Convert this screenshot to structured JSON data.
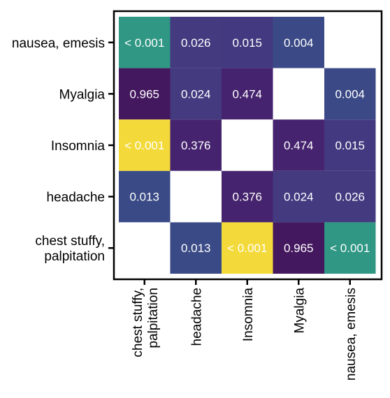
{
  "chart_data": {
    "type": "heatmap",
    "title": "",
    "xlabel": "",
    "ylabel": "",
    "x_categories": [
      [
        "chest stuffy,",
        "palpitation"
      ],
      [
        "headache"
      ],
      [
        "Insomnia"
      ],
      [
        "Myalgia"
      ],
      [
        "nausea, emesis"
      ]
    ],
    "y_categories_top_to_bottom": [
      [
        "nausea, emesis"
      ],
      [
        "Myalgia"
      ],
      [
        "Insomnia"
      ],
      [
        "headache"
      ],
      [
        "chest stuffy,",
        "palpitation"
      ]
    ],
    "cells": [
      [
        {
          "label": "< 0.001",
          "color": "#2F9784"
        },
        {
          "label": "0.026",
          "color": "#433A80"
        },
        {
          "label": "0.015",
          "color": "#433980"
        },
        {
          "label": "0.004",
          "color": "#3B4A86"
        },
        {
          "label": "",
          "color": "#ffffff"
        }
      ],
      [
        {
          "label": "0.965",
          "color": "#44185E"
        },
        {
          "label": "0.024",
          "color": "#433A80"
        },
        {
          "label": "0.474",
          "color": "#45236E"
        },
        {
          "label": "",
          "color": "#ffffff"
        },
        {
          "label": "0.004",
          "color": "#3B4A86"
        }
      ],
      [
        {
          "label": "< 0.001",
          "color": "#F3DA3A"
        },
        {
          "label": "0.376",
          "color": "#45236E"
        },
        {
          "label": "",
          "color": "#ffffff"
        },
        {
          "label": "0.474",
          "color": "#45236E"
        },
        {
          "label": "0.015",
          "color": "#433980"
        }
      ],
      [
        {
          "label": "0.013",
          "color": "#3A4A86"
        },
        {
          "label": "",
          "color": "#ffffff"
        },
        {
          "label": "0.376",
          "color": "#45236E"
        },
        {
          "label": "0.024",
          "color": "#433A80"
        },
        {
          "label": "0.026",
          "color": "#433A80"
        }
      ],
      [
        {
          "label": "",
          "color": "#ffffff"
        },
        {
          "label": "0.013",
          "color": "#3A4A86"
        },
        {
          "label": "< 0.001",
          "color": "#F3DA3A"
        },
        {
          "label": "0.965",
          "color": "#44185E"
        },
        {
          "label": "< 0.001",
          "color": "#2F9784"
        }
      ]
    ],
    "grid": false,
    "legend": "none"
  }
}
